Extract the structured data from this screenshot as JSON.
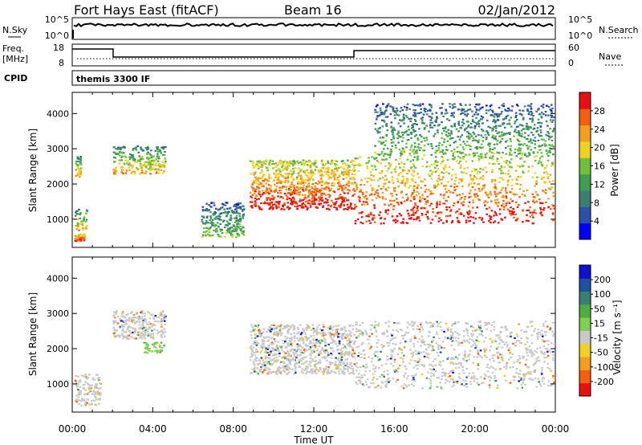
{
  "header": {
    "station": "Fort Hays East (fitACF)",
    "beam": "Beam 16",
    "date": "02/Jan/2012"
  },
  "status_panels": {
    "nsky_label": "N.Sky",
    "nsky_ticks": [
      "10^5",
      "10^0"
    ],
    "nsearch_label": "N.Search",
    "nsearch_ticks": [
      "10^5",
      "10^0"
    ],
    "freq_label": "Freq.",
    "freq_unit": "[MHz]",
    "freq_ticks": [
      "18",
      "8"
    ],
    "nave_label": "Nave",
    "nave_ticks": [
      "60",
      "0"
    ],
    "cpid_label": "CPID",
    "cpid_value": "themis 3300 IF"
  },
  "colors": {
    "power_scale": [
      "#0000ff",
      "#2f4fa8",
      "#3c7f70",
      "#3f9f4f",
      "#6fbf3f",
      "#f0d020",
      "#f0a020",
      "#f06010",
      "#e81010"
    ],
    "velocity_scale": [
      "#1010d0",
      "#2050a0",
      "#3c7f70",
      "#4fae3f",
      "#7fd050",
      "#c8c8c8",
      "#f0d020",
      "#f0a020",
      "#f06010",
      "#e81010"
    ],
    "ground_scatter": "#a0a0a0"
  },
  "chart_data": [
    {
      "type": "heatmap",
      "name": "power",
      "ylabel": "Slant Range [km]",
      "yticks": [
        "1000",
        "2000",
        "3000",
        "4000"
      ],
      "ylim": [
        200,
        4600
      ],
      "xlim_hours": [
        0,
        24
      ],
      "colorbar": {
        "label": "Power [dB]",
        "ticks": [
          "4",
          "8",
          "12",
          "16",
          "20",
          "24",
          "28"
        ],
        "range": [
          0,
          32
        ]
      },
      "features": [
        {
          "t_start": 0.1,
          "t_end": 0.6,
          "range_min": 400,
          "range_max": 600,
          "level": "high"
        },
        {
          "t_start": 0.1,
          "t_end": 0.7,
          "range_min": 700,
          "range_max": 1300,
          "level": "mid"
        },
        {
          "t_start": 0.1,
          "t_end": 0.4,
          "range_min": 2200,
          "range_max": 2800,
          "level": "mid"
        },
        {
          "t_start": 2.0,
          "t_end": 4.6,
          "range_min": 2300,
          "range_max": 3100,
          "level": "mid"
        },
        {
          "t_start": 6.4,
          "t_end": 8.5,
          "range_min": 500,
          "range_max": 1500,
          "level": "low"
        },
        {
          "t_start": 8.8,
          "t_end": 14.0,
          "range_min": 1300,
          "range_max": 2700,
          "level": "high"
        },
        {
          "t_start": 14.0,
          "t_end": 23.9,
          "range_min": 900,
          "range_max": 2800,
          "level": "high"
        },
        {
          "t_start": 15.0,
          "t_end": 23.9,
          "range_min": 2800,
          "range_max": 4300,
          "level": "low"
        }
      ]
    },
    {
      "type": "heatmap",
      "name": "velocity",
      "ylabel": "Slant Range [km]",
      "yticks": [
        "1000",
        "2000",
        "3000",
        "4000"
      ],
      "ylim": [
        200,
        4600
      ],
      "xlabel": "Time UT",
      "xticks": [
        "00:00",
        "04:00",
        "08:00",
        "12:00",
        "16:00",
        "20:00",
        "00:00"
      ],
      "xlim_hours": [
        0,
        24
      ],
      "colorbar": {
        "label": "Velocity [m s⁻¹]",
        "ticks": [
          "200",
          "100",
          "50",
          "15",
          "-15",
          "-50",
          "-100",
          "-200"
        ]
      },
      "features": [
        {
          "t_start": 0.1,
          "t_end": 1.4,
          "range_min": 400,
          "range_max": 1300,
          "dominant": "ground scatter"
        },
        {
          "t_start": 2.0,
          "t_end": 4.6,
          "range_min": 2300,
          "range_max": 3100,
          "dominant": "ground scatter"
        },
        {
          "t_start": 3.5,
          "t_end": 4.6,
          "range_min": 1900,
          "range_max": 2200,
          "dominant": "50 to 100"
        },
        {
          "t_start": 8.8,
          "t_end": 14.0,
          "range_min": 1300,
          "range_max": 2700,
          "dominant": "ground scatter"
        },
        {
          "t_start": 14.0,
          "t_end": 23.9,
          "range_min": 900,
          "range_max": 2800,
          "dominant": "ground scatter"
        }
      ]
    }
  ]
}
